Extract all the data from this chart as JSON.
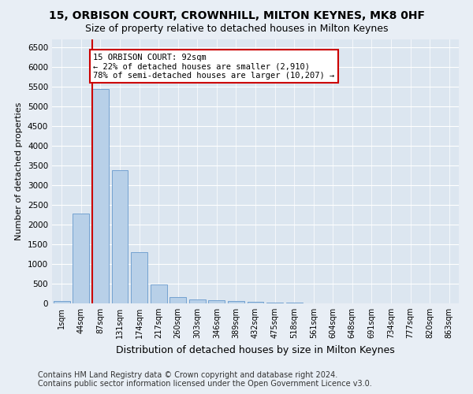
{
  "title1": "15, ORBISON COURT, CROWNHILL, MILTON KEYNES, MK8 0HF",
  "title2": "Size of property relative to detached houses in Milton Keynes",
  "xlabel": "Distribution of detached houses by size in Milton Keynes",
  "ylabel": "Number of detached properties",
  "footer1": "Contains HM Land Registry data © Crown copyright and database right 2024.",
  "footer2": "Contains public sector information licensed under the Open Government Licence v3.0.",
  "categories": [
    "1sqm",
    "44sqm",
    "87sqm",
    "131sqm",
    "174sqm",
    "217sqm",
    "260sqm",
    "303sqm",
    "346sqm",
    "389sqm",
    "432sqm",
    "475sqm",
    "518sqm",
    "561sqm",
    "604sqm",
    "648sqm",
    "691sqm",
    "734sqm",
    "777sqm",
    "820sqm",
    "863sqm"
  ],
  "values": [
    60,
    2280,
    5450,
    3390,
    1300,
    480,
    165,
    110,
    75,
    55,
    40,
    30,
    20,
    10,
    8,
    5,
    3,
    2,
    1,
    1,
    0
  ],
  "bar_color": "#b8d0e8",
  "bar_edge_color": "#6699cc",
  "red_line_bar_index": 2,
  "annotation_title": "15 ORBISON COURT: 92sqm",
  "annotation_line1": "← 22% of detached houses are smaller (2,910)",
  "annotation_line2": "78% of semi-detached houses are larger (10,207) →",
  "annotation_box_color": "#ffffff",
  "annotation_box_edge": "#cc0000",
  "ylim": [
    0,
    6700
  ],
  "yticks": [
    0,
    500,
    1000,
    1500,
    2000,
    2500,
    3000,
    3500,
    4000,
    4500,
    5000,
    5500,
    6000,
    6500
  ],
  "fig_bg_color": "#e8eef5",
  "axes_bg_color": "#dce6f0",
  "grid_color": "#ffffff",
  "title1_fontsize": 10,
  "title2_fontsize": 9,
  "xlabel_fontsize": 9,
  "ylabel_fontsize": 8,
  "footer_fontsize": 7
}
